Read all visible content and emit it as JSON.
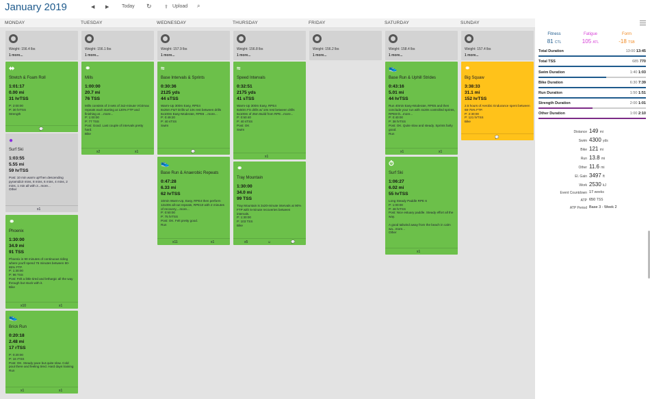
{
  "header": {
    "month": "January 2019",
    "today": "Today",
    "upload": "Upload"
  },
  "days": [
    "MONDAY",
    "TUESDAY",
    "WEDNESDAY",
    "THURSDAY",
    "FRIDAY",
    "SATURDAY",
    "SUNDAY"
  ],
  "weights": [
    {
      "w": "Weight: 156.4 lbs",
      "m": "1 more..."
    },
    {
      "w": "Weight: 156.1 lbs",
      "m": "1 more..."
    },
    {
      "w": "Weight: 157.9 lbs",
      "m": "1 more..."
    },
    {
      "w": "Weight: 156.8 lbs",
      "m": "1 more..."
    },
    {
      "w": "Weight: 156.2 lbs",
      "m": "1 more..."
    },
    {
      "w": "Weight: 158.4 lbs",
      "m": "1 more..."
    },
    {
      "w": "Weight: 157.4 lbs",
      "m": "1 more..."
    }
  ],
  "workouts": {
    "mon1": {
      "title": "Stretch & Foam Roll",
      "l1": "1:01:17",
      "l2": "0.00 mi",
      "l3": "31 hrTSS",
      "body": "P: 2:00:00\nP: 30 hrTSS\nStrength",
      "foot": ""
    },
    "mon2": {
      "title": "Surf Ski",
      "l1": "1:03:55",
      "l2": "5.55 mi",
      "l3": "59 hrTSS",
      "body": "Post: 10 min warm upThen descending pyramid10 mins, 8 mins, 6 mins, 4 mins, 2 mins, 1 min all with 2...more...\nOther",
      "foot": "x1"
    },
    "mon3": {
      "title": "Phoenix",
      "l1": "1:30:00",
      "l2": "34.9 mi",
      "l3": "91 TSS",
      "body": "Phoenix is 90 minutes of continuous riding where you'll spend 75 minutes between 80-85% FTP.\nP: 1:30:00\nP: 96 TSS\nPost: Felt a little tired and lethargic all the way through but stuck with it.\nBike",
      "f1": "x10",
      "f2": "x1"
    },
    "mon4": {
      "title": "Brick Run",
      "l1": "0:20:18",
      "l2": "2.48 mi",
      "l3": "17 rTSS",
      "body": "P: 0:20:00\nP: 16 rTSS\nPost: OK. Steady pace but quite slow. Cold pout there and feeling tired. Hard days training\nRun",
      "f1": "x1",
      "f2": "x1"
    },
    "tue1": {
      "title": "Mills",
      "l1": "1:00:00",
      "l2": "20.7 mi",
      "l3": "76 TSS",
      "body": "Mills consists of 3 sets of 3x2-minute VO2max repeats each starting at 120% FTP and finishing at ...more...\nP: 1:00:00\nP: 77 TSS\nPost: Good. Last couple of intervals pretty hard.\nBike",
      "f1": "x2",
      "f2": "x1"
    },
    "wed1": {
      "title": "Base Intervals & Sprints",
      "l1": "0:30:36",
      "l2": "2125 yds",
      "l3": "44 sTSS",
      "body": "Warm-Up 300m Easy, RPE4\n8x25m F&T Drills w/ 10s rest between drills\n6x100m Easy-Moderate, RPE6 ...more...\nP: 0:49:20\nP: 40 sTSS\nSwim",
      "foot": ""
    },
    "wed2": {
      "title": "Base Run & Anaerobic Repeats",
      "l1": "0:47:28",
      "l2": "6.33 mi",
      "l3": "62 hrTSS",
      "body": "10min Warm-Up, Easy, RPE4 then perform 12x30s all-out repeats, RPE10 with 2 minutes of recovery,...more...\nP: 0:50:00\nP: 75 hrTSS\nPost: OK. Felt pretty good.\nRun",
      "f1": "x11",
      "f2": "x1"
    },
    "thu1": {
      "title": "Speed Intervals",
      "l1": "0:32:51",
      "l2": "2175 yds",
      "l3": "41 sTSS",
      "body": "Warm-Up 300m Easy, RPE4\n6x50m FS drills w/ 10s rest between drills\n6x100m of 25m Build from RPE...more...\nP: 0:50:40\nP: 40 sTSS\nPost: OK\nSwim",
      "foot": "x1"
    },
    "thu2": {
      "title": "Tray Mountain",
      "l1": "1:30:00",
      "l2": "34.0 mi",
      "l3": "99 TSS",
      "body": "Tray Mountain is 3x20-minute intervals at 90% FTP with 5-minute recoveries between intervals.\nP: 1:30:00\nP: 103 TSS\nBike",
      "f1": "x5",
      "f2": ""
    },
    "sat1": {
      "title": "Base Run & Uphill Strides",
      "l1": "0:43:16",
      "l2": "5.01 mi",
      "l3": "44 hrTSS",
      "body": "Run 40min Easy-Moderate, RPE5 and then conclude your run with 4x20s controlled sprints, RPE8 th...more...\nP: 0:40:00\nP: 38 hrTSS\nPost: OK. Quite slow and steady. Sprints fairly good.\nRun",
      "f1": "x1",
      "f2": "x1"
    },
    "sat2": {
      "title": "Surf Ski",
      "l1": "1:06:27",
      "l2": "6.02 mi",
      "l3": "55 hrTSS",
      "body": "Long Steady Paddle RPE 6\nP: 1:00:00\nP: 48 hrTSS\nPost: Nice estuary paddle. Steady effort all the way.\n\nA good tailwind away from the beach in calm wa...more...\nOther",
      "foot": "x1"
    },
    "sun1": {
      "title": "Big Squaw",
      "l1": "3:38:33",
      "l2": "31.1 mi",
      "l3": "152 hrTSS",
      "body": "2.5 hours of Aerobic Endurance spent between 68-75% FTP.\nP: 2:30:00\nP: 121 hrTSS\nBike",
      "foot": ""
    }
  },
  "summary": {
    "fitness_label": "Fitness",
    "fitness_val": "81",
    "fitness_unit": "CTL",
    "fatigue_label": "Fatigue",
    "fatigue_val": "105",
    "fatigue_unit": "ATL",
    "form_label": "Form",
    "form_val": "-18",
    "form_unit": "TSB",
    "rows": [
      {
        "label": "Total Duration",
        "planned": "13:00",
        "actual": "13:45"
      },
      {
        "label": "Total TSS",
        "planned": "685",
        "actual": "770"
      },
      {
        "label": "Swim Duration",
        "planned": "1:40",
        "actual": "1:03"
      },
      {
        "label": "Bike Duration",
        "planned": "6:30",
        "actual": "7:39"
      },
      {
        "label": "Run Duration",
        "planned": "1:50",
        "actual": "1:51"
      },
      {
        "label": "Strength Duration",
        "planned": "2:00",
        "actual": "1:01"
      },
      {
        "label": "Other Duration",
        "planned": "1:00",
        "actual": "2:10"
      }
    ],
    "stats": [
      {
        "label": "Distance",
        "value": "149",
        "unit": "mi"
      },
      {
        "label": "Swim",
        "value": "4300",
        "unit": "yds"
      },
      {
        "label": "Bike",
        "value": "121",
        "unit": "mi"
      },
      {
        "label": "Run",
        "value": "13.8",
        "unit": "mi"
      },
      {
        "label": "Other",
        "value": "11.6",
        "unit": "mi"
      },
      {
        "label": "El. Gain",
        "value": "3497",
        "unit": "ft"
      },
      {
        "label": "Work",
        "value": "2530",
        "unit": "kJ"
      },
      {
        "label": "Event Countdown",
        "value": "17",
        "unit": "weeks"
      },
      {
        "label": "ATP",
        "value": "650",
        "unit": "TSS"
      },
      {
        "label": "ATP Period",
        "value": "Base 3 - Week 2",
        "unit": ""
      }
    ]
  },
  "colors": {
    "workout": "#6cc04a",
    "missed": "#ffc21a",
    "other": "#d0d0d0",
    "fitness": "#1e5a8c",
    "fatigue": "#d63fd6",
    "form": "#f08a24"
  }
}
